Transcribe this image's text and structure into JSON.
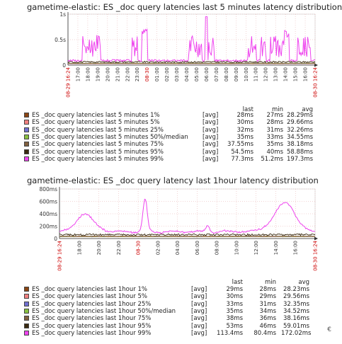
{
  "charts": [
    {
      "title": "gametime-elastic: ES _doc query latencies last 5 minutes latency distribution",
      "y_ticks": [
        "1s",
        "0.5s",
        "0"
      ],
      "x_ticks": [
        "08-29 16:24",
        "17:00",
        "18:00",
        "19:00",
        "20:00",
        "21:00",
        "22:00",
        "23:00",
        "08-30",
        "01:00",
        "02:00",
        "03:00",
        "04:00",
        "05:00",
        "06:00",
        "07:00",
        "08:00",
        "09:00",
        "10:00",
        "11:00",
        "12:00",
        "13:00",
        "14:00",
        "15:00",
        "16:00",
        "08-30 16:24"
      ],
      "legend_headers": {
        "last": "last",
        "min": "min",
        "avg": "avg"
      },
      "legend": [
        {
          "name": "ES _doc query latencies last 5 minutes 1%",
          "agg": "[avg]",
          "last": "28ms",
          "min": "27ms",
          "avg": "28.29ms",
          "color": "#8b4513"
        },
        {
          "name": "ES _doc query latencies last 5 minutes 5%",
          "agg": "[avg]",
          "last": "30ms",
          "min": "28ms",
          "avg": "29.66ms",
          "color": "#f08080"
        },
        {
          "name": "ES _doc query latencies last 5 minutes 25%",
          "agg": "[avg]",
          "last": "32ms",
          "min": "31ms",
          "avg": "32.26ms",
          "color": "#7070d0"
        },
        {
          "name": "ES _doc query latencies last 5 minutes 50%/median",
          "agg": "[avg]",
          "last": "35ms",
          "min": "33ms",
          "avg": "34.55ms",
          "color": "#88c040"
        },
        {
          "name": "ES _doc query latencies last 5 minutes 75%",
          "agg": "[avg]",
          "last": "37.55ms",
          "min": "35ms",
          "avg": "38.18ms",
          "color": "#806040"
        },
        {
          "name": "ES _doc query latencies last 5 minutes 95%",
          "agg": "[avg]",
          "last": "54.5ms",
          "min": "40ms",
          "avg": "58.88ms",
          "color": "#3a2a10"
        },
        {
          "name": "ES _doc query latencies last 5 minutes 99%",
          "agg": "[avg]",
          "last": "77.3ms",
          "min": "51.2ms",
          "avg": "197.3ms",
          "color": "#ee44ee"
        }
      ]
    },
    {
      "title": "gametime-elastic: ES _doc query latency last 1hour latency distribution",
      "y_ticks": [
        "800ms",
        "600ms",
        "400ms",
        "200ms",
        "0"
      ],
      "x_ticks": [
        "08-29 16:24",
        "18:00",
        "20:00",
        "22:00",
        "08-30",
        "02:00",
        "04:00",
        "06:00",
        "08:00",
        "10:00",
        "12:00",
        "14:00",
        "16:00",
        "08-30 16:24"
      ],
      "legend_headers": {
        "last": "last",
        "min": "min",
        "avg": "avg"
      },
      "legend": [
        {
          "name": "ES _doc query latencies last 1hour 1%",
          "agg": "[avg]",
          "last": "29ms",
          "min": "28ms",
          "avg": "28.23ms",
          "color": "#8b4513"
        },
        {
          "name": "ES _doc query latencies last 1hour 5%",
          "agg": "[avg]",
          "last": "30ms",
          "min": "29ms",
          "avg": "29.56ms",
          "color": "#f08080"
        },
        {
          "name": "ES _doc query latencies last 1hour 25%",
          "agg": "[avg]",
          "last": "33ms",
          "min": "31ms",
          "avg": "32.35ms",
          "color": "#7070d0"
        },
        {
          "name": "ES _doc query latencies last 1hour 50%/median",
          "agg": "[avg]",
          "last": "35ms",
          "min": "34ms",
          "avg": "34.52ms",
          "color": "#88c040"
        },
        {
          "name": "ES _doc query latencies last 1hour 75%",
          "agg": "[avg]",
          "last": "38ms",
          "min": "36ms",
          "avg": "38.16ms",
          "color": "#806040"
        },
        {
          "name": "ES _doc query latencies last 1hour 95%",
          "agg": "[avg]",
          "last": "53ms",
          "min": "46ms",
          "avg": "59.01ms",
          "color": "#3a2a10"
        },
        {
          "name": "ES _doc query latencies last 1hour 99%",
          "agg": "[avg]",
          "last": "113.4ms",
          "min": "80.4ms",
          "avg": "172.02ms",
          "color": "#ee44ee"
        }
      ]
    }
  ],
  "edge_mark": "€",
  "chart_data": [
    {
      "type": "line",
      "title": "gametime-elastic: ES _doc query latencies last 5 minutes latency distribution",
      "x_range": [
        "08-29 16:24",
        "08-30 16:24"
      ],
      "y_unit": "s",
      "ylim": [
        0,
        1.0
      ],
      "grid": true,
      "series": [
        {
          "name": "ES _doc query latencies last 5 minutes 1%",
          "avg": 0.02829
        },
        {
          "name": "ES _doc query latencies last 5 minutes 5%",
          "avg": 0.02966
        },
        {
          "name": "ES _doc query latencies last 5 minutes 25%",
          "avg": 0.03226
        },
        {
          "name": "ES _doc query latencies last 5 minutes 50%/median",
          "avg": 0.03455
        },
        {
          "name": "ES _doc query latencies last 5 minutes 75%",
          "avg": 0.03818
        },
        {
          "name": "ES _doc query latencies last 5 minutes 95%",
          "avg": 0.05888
        },
        {
          "name": "ES _doc query latencies last 5 minutes 99%",
          "avg": 0.1973
        }
      ]
    },
    {
      "type": "line",
      "title": "gametime-elastic: ES _doc query latency last 1hour latency distribution",
      "x_range": [
        "08-29 16:24",
        "08-30 16:24"
      ],
      "y_unit": "ms",
      "ylim": [
        0,
        800
      ],
      "grid": true,
      "series": [
        {
          "name": "ES _doc query latencies last 1hour 1%",
          "avg": 28.23
        },
        {
          "name": "ES _doc query latencies last 1hour 5%",
          "avg": 29.56
        },
        {
          "name": "ES _doc query latencies last 1hour 25%",
          "avg": 32.35
        },
        {
          "name": "ES _doc query latencies last 1hour 50%/median",
          "avg": 34.52
        },
        {
          "name": "ES _doc query latencies last 1hour 75%",
          "avg": 38.16
        },
        {
          "name": "ES _doc query latencies last 1hour 95%",
          "avg": 59.01
        },
        {
          "name": "ES _doc query latencies last 1hour 99%",
          "avg": 172.02
        }
      ]
    }
  ]
}
